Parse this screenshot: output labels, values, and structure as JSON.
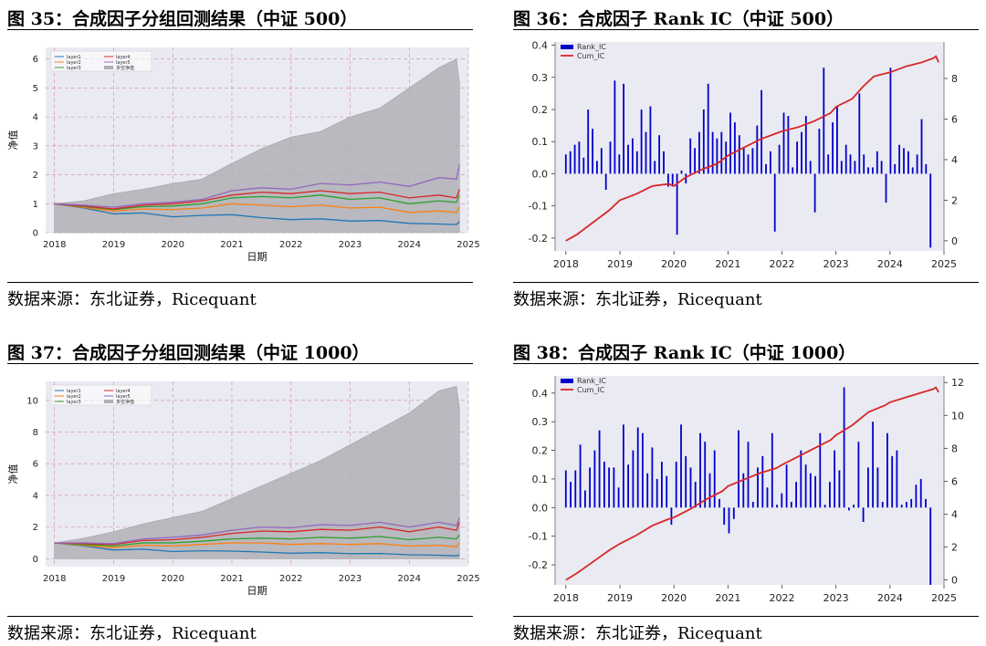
{
  "source_text": "数据来源：东北证券，Ricequant",
  "panels": {
    "p35": {
      "title": "图 35：合成因子分组回测结果（中证 500）"
    },
    "p36": {
      "title": "图 36：合成因子 Rank IC（中证 500）"
    },
    "p37": {
      "title": "图 37：合成因子分组回测结果（中证 1000）"
    },
    "p38": {
      "title": "图 38：合成因子 Rank IC（中证 1000）"
    }
  },
  "chart_data": [
    {
      "id": "p35",
      "type": "line",
      "ylabel": "净值",
      "xlabel": "日期",
      "x_ticks": [
        "2018",
        "2019",
        "2020",
        "2021",
        "2022",
        "2023",
        "2024",
        "2025"
      ],
      "xlim": [
        2017.85,
        2025.0
      ],
      "ylim": [
        0,
        6.4
      ],
      "y_ticks": [
        0,
        1,
        2,
        3,
        4,
        5,
        6
      ],
      "grid": true,
      "legend_position": "top-left",
      "x": [
        2018.0,
        2018.5,
        2019.0,
        2019.5,
        2020.0,
        2020.5,
        2021.0,
        2021.5,
        2022.0,
        2022.5,
        2023.0,
        2023.5,
        2024.0,
        2024.5,
        2024.8,
        2024.85
      ],
      "series": [
        {
          "name": "layer1",
          "color": "#1f77b4",
          "values": [
            1.0,
            0.85,
            0.65,
            0.68,
            0.55,
            0.6,
            0.62,
            0.52,
            0.45,
            0.48,
            0.4,
            0.42,
            0.32,
            0.3,
            0.28,
            0.38
          ]
        },
        {
          "name": "layer2",
          "color": "#ff7f0e",
          "values": [
            1.0,
            0.87,
            0.75,
            0.82,
            0.8,
            0.85,
            1.0,
            0.95,
            0.9,
            0.95,
            0.85,
            0.88,
            0.7,
            0.75,
            0.7,
            0.9
          ]
        },
        {
          "name": "layer3",
          "color": "#2ca02c",
          "values": [
            1.0,
            0.9,
            0.8,
            0.9,
            0.92,
            1.0,
            1.2,
            1.25,
            1.2,
            1.3,
            1.15,
            1.2,
            1.0,
            1.1,
            1.05,
            1.3
          ]
        },
        {
          "name": "layer4",
          "color": "#d62728",
          "values": [
            1.0,
            0.92,
            0.82,
            0.95,
            1.0,
            1.1,
            1.3,
            1.4,
            1.35,
            1.45,
            1.35,
            1.4,
            1.2,
            1.3,
            1.2,
            1.5
          ]
        },
        {
          "name": "layer5",
          "color": "#9467bd",
          "values": [
            1.0,
            0.95,
            0.88,
            1.0,
            1.05,
            1.15,
            1.45,
            1.55,
            1.5,
            1.7,
            1.65,
            1.75,
            1.6,
            1.9,
            1.85,
            2.35
          ]
        },
        {
          "name": "多空净值",
          "color": "#b0b0b6",
          "area": true,
          "values": [
            1.0,
            1.1,
            1.35,
            1.5,
            1.7,
            1.85,
            2.4,
            2.9,
            3.3,
            3.5,
            4.0,
            4.3,
            5.0,
            5.7,
            6.0,
            5.2
          ]
        }
      ]
    },
    {
      "id": "p36",
      "type": "bar",
      "series": [
        {
          "name": "Rank_IC",
          "color": "#0000cd",
          "axis": "left"
        },
        {
          "name": "Cum_IC",
          "color": "#d62728",
          "axis": "right"
        }
      ],
      "x_ticks": [
        "2018",
        "2019",
        "2020",
        "2021",
        "2022",
        "2023",
        "2024",
        "2025"
      ],
      "xlim": [
        2017.8,
        2025.0
      ],
      "ylim_left": [
        -0.24,
        0.41
      ],
      "y_ticks_left": [
        -0.2,
        -0.1,
        0.0,
        0.1,
        0.2,
        0.3,
        0.4
      ],
      "ylim_right": [
        -0.5,
        9.8
      ],
      "y_ticks_right": [
        0,
        2,
        4,
        6,
        8
      ],
      "legend_position": "top-left",
      "rank_ic": [
        0.06,
        0.07,
        0.09,
        0.1,
        0.05,
        0.2,
        0.14,
        0.04,
        0.08,
        -0.05,
        0.1,
        0.29,
        0.06,
        0.28,
        0.09,
        0.11,
        0.07,
        0.2,
        0.13,
        0.21,
        0.04,
        0.12,
        0.07,
        -0.04,
        -0.04,
        -0.19,
        0.01,
        -0.03,
        0.11,
        0.08,
        0.13,
        0.2,
        0.28,
        0.13,
        0.11,
        0.13,
        0.1,
        0.19,
        0.16,
        0.12,
        0.08,
        0.06,
        0.08,
        0.15,
        0.26,
        0.03,
        0.07,
        -0.18,
        0.09,
        0.19,
        0.18,
        0.02,
        0.1,
        0.13,
        0.18,
        0.04,
        -0.12,
        0.14,
        0.33,
        0.06,
        0.16,
        0.21,
        0.04,
        0.09,
        0.06,
        0.04,
        0.25,
        0.06,
        0.02,
        0.02,
        0.07,
        0.04,
        -0.09,
        0.33,
        0.03,
        0.09,
        0.08,
        0.07,
        0.02,
        0.06,
        0.17,
        0.03,
        -0.23
      ],
      "cum_x": [
        2018.0,
        2018.2,
        2018.5,
        2018.8,
        2019.0,
        2019.3,
        2019.6,
        2019.9,
        2020.0,
        2020.2,
        2020.5,
        2020.8,
        2021.0,
        2021.3,
        2021.6,
        2021.9,
        2022.0,
        2022.3,
        2022.6,
        2022.9,
        2023.0,
        2023.3,
        2023.5,
        2023.7,
        2024.0,
        2024.3,
        2024.6,
        2024.8,
        2024.85,
        2024.9
      ],
      "cum_ic": [
        0.0,
        0.3,
        0.9,
        1.5,
        2.0,
        2.3,
        2.7,
        2.8,
        2.7,
        3.1,
        3.5,
        3.8,
        4.2,
        4.6,
        5.0,
        5.3,
        5.4,
        5.6,
        5.9,
        6.3,
        6.6,
        7.0,
        7.6,
        8.1,
        8.3,
        8.6,
        8.8,
        9.0,
        9.1,
        8.8
      ]
    },
    {
      "id": "p37",
      "type": "line",
      "ylabel": "净值",
      "xlabel": "日期",
      "x_ticks": [
        "2018",
        "2019",
        "2020",
        "2021",
        "2022",
        "2023",
        "2024",
        "2025"
      ],
      "xlim": [
        2017.85,
        2025.0
      ],
      "ylim": [
        -0.5,
        11.2
      ],
      "y_ticks": [
        0,
        2,
        4,
        6,
        8,
        10
      ],
      "grid": true,
      "legend_position": "top-left",
      "x": [
        2018.0,
        2018.5,
        2019.0,
        2019.5,
        2020.0,
        2020.5,
        2021.0,
        2021.5,
        2022.0,
        2022.5,
        2023.0,
        2023.5,
        2024.0,
        2024.5,
        2024.8,
        2024.85
      ],
      "series": [
        {
          "name": "layer1",
          "color": "#1f77b4",
          "values": [
            1.0,
            0.8,
            0.55,
            0.6,
            0.45,
            0.5,
            0.48,
            0.42,
            0.35,
            0.38,
            0.32,
            0.33,
            0.25,
            0.22,
            0.18,
            0.25
          ]
        },
        {
          "name": "layer2",
          "color": "#ff7f0e",
          "values": [
            1.0,
            0.85,
            0.7,
            0.85,
            0.8,
            0.9,
            1.0,
            1.0,
            0.9,
            0.95,
            0.9,
            0.95,
            0.8,
            0.85,
            0.75,
            1.0
          ]
        },
        {
          "name": "layer3",
          "color": "#2ca02c",
          "values": [
            1.0,
            0.9,
            0.8,
            1.0,
            1.0,
            1.1,
            1.25,
            1.3,
            1.25,
            1.35,
            1.3,
            1.4,
            1.2,
            1.35,
            1.25,
            1.5
          ]
        },
        {
          "name": "layer4",
          "color": "#d62728",
          "values": [
            1.0,
            0.95,
            0.9,
            1.15,
            1.2,
            1.35,
            1.6,
            1.75,
            1.7,
            1.85,
            1.8,
            2.0,
            1.7,
            2.0,
            1.8,
            2.3
          ]
        },
        {
          "name": "layer5",
          "color": "#9467bd",
          "values": [
            1.0,
            1.0,
            0.95,
            1.25,
            1.35,
            1.5,
            1.8,
            2.0,
            1.95,
            2.15,
            2.1,
            2.3,
            2.0,
            2.3,
            2.1,
            2.6
          ]
        },
        {
          "name": "多空净值",
          "color": "#b0b0b6",
          "area": true,
          "values": [
            1.0,
            1.3,
            1.7,
            2.2,
            2.6,
            3.0,
            3.8,
            4.6,
            5.4,
            6.2,
            7.2,
            8.2,
            9.2,
            10.6,
            10.9,
            9.5
          ]
        }
      ]
    },
    {
      "id": "p38",
      "type": "bar",
      "series": [
        {
          "name": "Rank_IC",
          "color": "#0000cd",
          "axis": "left"
        },
        {
          "name": "Cum_IC",
          "color": "#d62728",
          "axis": "right"
        }
      ],
      "x_ticks": [
        "2018",
        "2019",
        "2020",
        "2021",
        "2022",
        "2023",
        "2024",
        "2025"
      ],
      "xlim": [
        2017.8,
        2025.0
      ],
      "ylim_left": [
        -0.27,
        0.46
      ],
      "y_ticks_left": [
        -0.2,
        -0.1,
        0.0,
        0.1,
        0.2,
        0.3,
        0.4
      ],
      "ylim_right": [
        -0.3,
        12.4
      ],
      "y_ticks_right": [
        0,
        2,
        4,
        6,
        8,
        10,
        12
      ],
      "legend_position": "top-left",
      "rank_ic": [
        0.13,
        0.09,
        0.13,
        0.22,
        0.06,
        0.14,
        0.2,
        0.27,
        0.16,
        0.14,
        0.14,
        0.07,
        0.29,
        0.15,
        0.2,
        0.28,
        0.26,
        0.12,
        0.21,
        0.1,
        0.16,
        0.11,
        -0.06,
        0.16,
        0.29,
        0.18,
        0.14,
        0.09,
        0.26,
        0.23,
        0.12,
        0.2,
        0.03,
        -0.06,
        -0.09,
        -0.04,
        0.27,
        0.12,
        0.23,
        0.02,
        0.14,
        0.18,
        0.07,
        0.26,
        0.01,
        0.05,
        0.15,
        0.02,
        0.09,
        0.2,
        0.15,
        0.12,
        0.11,
        0.26,
        0.01,
        0.09,
        0.2,
        0.13,
        0.42,
        -0.01,
        0.01,
        0.23,
        -0.05,
        0.14,
        0.3,
        0.14,
        0.02,
        0.26,
        0.18,
        0.2,
        0.01,
        0.02,
        0.03,
        0.08,
        0.1,
        0.03,
        -0.27
      ],
      "cum_x": [
        2018.0,
        2018.2,
        2018.5,
        2018.8,
        2019.0,
        2019.3,
        2019.6,
        2019.9,
        2020.0,
        2020.3,
        2020.6,
        2020.9,
        2021.0,
        2021.3,
        2021.6,
        2021.9,
        2022.0,
        2022.3,
        2022.6,
        2022.9,
        2023.0,
        2023.3,
        2023.6,
        2023.9,
        2024.0,
        2024.3,
        2024.6,
        2024.8,
        2024.85,
        2024.9
      ],
      "cum_ic": [
        0.0,
        0.4,
        1.1,
        1.8,
        2.2,
        2.7,
        3.3,
        3.7,
        3.8,
        4.3,
        4.9,
        5.4,
        5.7,
        6.1,
        6.5,
        6.8,
        7.0,
        7.5,
        8.0,
        8.5,
        8.8,
        9.4,
        10.2,
        10.6,
        10.8,
        11.1,
        11.4,
        11.6,
        11.7,
        11.4
      ]
    }
  ]
}
